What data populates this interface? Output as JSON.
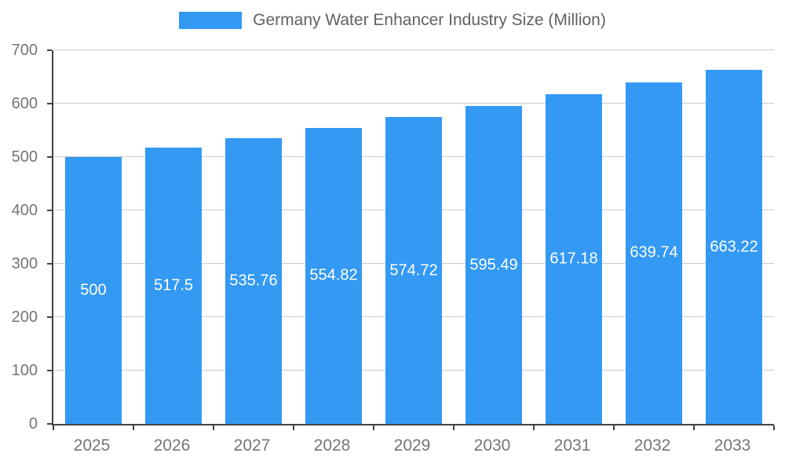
{
  "legend": {
    "title": "Germany Water Enhancer Industry Size (Million)"
  },
  "colors": {
    "bar": "#3399F3",
    "bar_label_text": "#ffffff",
    "grid": "#cccccc",
    "axis_line": "#424242",
    "axis_text": "#757575",
    "legend_text": "#616161"
  },
  "chart_data": {
    "type": "bar",
    "title": "Germany Water Enhancer Industry Size (Million)",
    "categories": [
      "2025",
      "2026",
      "2027",
      "2028",
      "2029",
      "2030",
      "2031",
      "2032",
      "2033"
    ],
    "values": [
      500,
      517.5,
      535.76,
      554.82,
      574.72,
      595.49,
      617.18,
      639.74,
      663.22
    ],
    "xlabel": "",
    "ylabel": "",
    "ylim": [
      0,
      700
    ],
    "yticks": [
      0,
      100,
      200,
      300,
      400,
      500,
      600,
      700
    ],
    "grid": true,
    "legend_position": "top",
    "bar_labels_inside": true
  }
}
